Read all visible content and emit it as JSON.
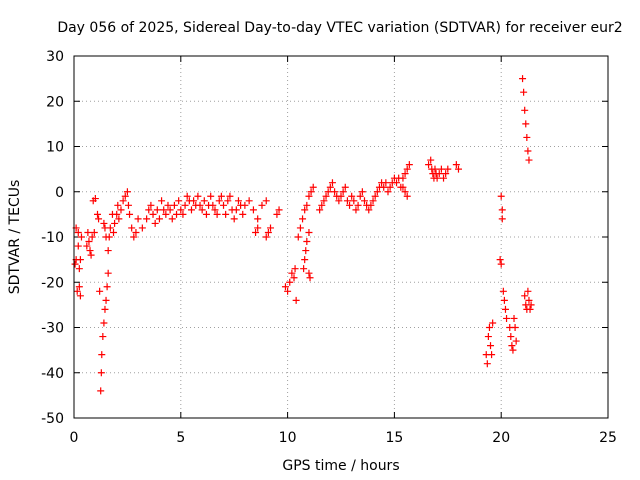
{
  "chart_data": {
    "type": "scatter",
    "title": "Day 056 of 2025, Sidereal Day-to-day VTEC variation (SDTVAR) for receiver eur2",
    "xlabel": "GPS time / hours",
    "ylabel": "SDTVAR / TECUs",
    "xlim": [
      0,
      25
    ],
    "ylim": [
      -50,
      30
    ],
    "xticks": [
      0,
      5,
      10,
      15,
      20,
      25
    ],
    "yticks": [
      -50,
      -40,
      -30,
      -20,
      -10,
      0,
      10,
      20,
      30
    ],
    "grid": true,
    "marker": "+",
    "color": "#ff0000",
    "series": [
      {
        "name": "SDTVAR",
        "points": [
          [
            0.05,
            -16
          ],
          [
            0.1,
            -8
          ],
          [
            0.1,
            -15
          ],
          [
            0.15,
            -22
          ],
          [
            0.2,
            -12
          ],
          [
            0.2,
            -9
          ],
          [
            0.25,
            -21
          ],
          [
            0.25,
            -17
          ],
          [
            0.3,
            -15
          ],
          [
            0.3,
            -23
          ],
          [
            0.35,
            -10
          ],
          [
            0.6,
            -12
          ],
          [
            0.65,
            -9
          ],
          [
            0.7,
            -11
          ],
          [
            0.75,
            -13
          ],
          [
            0.8,
            -14
          ],
          [
            0.85,
            -10
          ],
          [
            0.9,
            -2
          ],
          [
            0.95,
            -9
          ],
          [
            1.0,
            -1.5
          ],
          [
            1.1,
            -5
          ],
          [
            1.15,
            -6
          ],
          [
            1.2,
            -22
          ],
          [
            1.25,
            -44
          ],
          [
            1.28,
            -40
          ],
          [
            1.3,
            -36
          ],
          [
            1.35,
            -32
          ],
          [
            1.4,
            -29
          ],
          [
            1.45,
            -26
          ],
          [
            1.5,
            -24
          ],
          [
            1.55,
            -21
          ],
          [
            1.6,
            -18
          ],
          [
            1.4,
            -7
          ],
          [
            1.45,
            -8
          ],
          [
            1.5,
            -10
          ],
          [
            1.6,
            -13
          ],
          [
            1.65,
            -10
          ],
          [
            1.7,
            -8
          ],
          [
            1.8,
            -5
          ],
          [
            1.85,
            -9
          ],
          [
            1.9,
            -7
          ],
          [
            2.0,
            -5
          ],
          [
            2.05,
            -3
          ],
          [
            2.1,
            -6
          ],
          [
            2.2,
            -4
          ],
          [
            2.3,
            -2
          ],
          [
            2.4,
            -1
          ],
          [
            2.5,
            0
          ],
          [
            2.55,
            -3
          ],
          [
            2.6,
            -5
          ],
          [
            2.7,
            -8
          ],
          [
            2.8,
            -10
          ],
          [
            2.9,
            -9
          ],
          [
            3.0,
            -6
          ],
          [
            3.2,
            -8
          ],
          [
            3.4,
            -6
          ],
          [
            3.5,
            -4
          ],
          [
            3.6,
            -3
          ],
          [
            3.7,
            -5
          ],
          [
            3.8,
            -7
          ],
          [
            3.9,
            -4
          ],
          [
            4.0,
            -6
          ],
          [
            4.1,
            -2
          ],
          [
            4.2,
            -4
          ],
          [
            4.3,
            -5
          ],
          [
            4.4,
            -3
          ],
          [
            4.5,
            -4
          ],
          [
            4.6,
            -6
          ],
          [
            4.7,
            -3
          ],
          [
            4.8,
            -5
          ],
          [
            4.9,
            -2
          ],
          [
            5.0,
            -4
          ],
          [
            5.1,
            -5
          ],
          [
            5.2,
            -3
          ],
          [
            5.3,
            -1
          ],
          [
            5.4,
            -2
          ],
          [
            5.5,
            -4
          ],
          [
            5.6,
            -2
          ],
          [
            5.7,
            -3
          ],
          [
            5.8,
            -1
          ],
          [
            5.9,
            -3
          ],
          [
            6.0,
            -4
          ],
          [
            6.1,
            -2
          ],
          [
            6.2,
            -5
          ],
          [
            6.3,
            -3
          ],
          [
            6.4,
            -1
          ],
          [
            6.5,
            -3
          ],
          [
            6.6,
            -4
          ],
          [
            6.7,
            -5
          ],
          [
            6.8,
            -2
          ],
          [
            6.9,
            -1
          ],
          [
            7.0,
            -3
          ],
          [
            7.1,
            -5
          ],
          [
            7.2,
            -2
          ],
          [
            7.3,
            -1
          ],
          [
            7.4,
            -4
          ],
          [
            7.5,
            -6
          ],
          [
            7.6,
            -4
          ],
          [
            7.7,
            -2
          ],
          [
            7.8,
            -3
          ],
          [
            7.9,
            -5
          ],
          [
            8.0,
            -3
          ],
          [
            8.2,
            -2
          ],
          [
            8.4,
            -4
          ],
          [
            8.6,
            -6
          ],
          [
            8.8,
            -3
          ],
          [
            9.0,
            -2
          ],
          [
            8.5,
            -9
          ],
          [
            8.6,
            -8
          ],
          [
            9.0,
            -10
          ],
          [
            9.1,
            -9
          ],
          [
            9.2,
            -8
          ],
          [
            9.5,
            -5
          ],
          [
            9.6,
            -4
          ],
          [
            9.9,
            -21
          ],
          [
            10.0,
            -22
          ],
          [
            10.1,
            -20
          ],
          [
            10.2,
            -18
          ],
          [
            10.3,
            -19
          ],
          [
            10.35,
            -17
          ],
          [
            10.4,
            -24
          ],
          [
            10.5,
            -10
          ],
          [
            10.6,
            -8
          ],
          [
            10.7,
            -6
          ],
          [
            10.8,
            -4
          ],
          [
            10.9,
            -3
          ],
          [
            11.0,
            -1
          ],
          [
            11.1,
            0
          ],
          [
            11.2,
            1
          ],
          [
            10.75,
            -17
          ],
          [
            10.8,
            -15
          ],
          [
            10.85,
            -13
          ],
          [
            10.9,
            -11
          ],
          [
            11.0,
            -9
          ],
          [
            11.0,
            -18
          ],
          [
            11.05,
            -19
          ],
          [
            11.5,
            -4
          ],
          [
            11.6,
            -3
          ],
          [
            11.7,
            -2
          ],
          [
            11.8,
            -1
          ],
          [
            11.9,
            0
          ],
          [
            12.0,
            1
          ],
          [
            12.1,
            2
          ],
          [
            12.2,
            0
          ],
          [
            12.3,
            -1
          ],
          [
            12.4,
            -2
          ],
          [
            12.5,
            -1
          ],
          [
            12.6,
            0
          ],
          [
            12.7,
            1
          ],
          [
            12.8,
            -2
          ],
          [
            12.9,
            -3
          ],
          [
            13.0,
            -1
          ],
          [
            13.1,
            -2
          ],
          [
            13.2,
            -4
          ],
          [
            13.3,
            -3
          ],
          [
            13.4,
            -1
          ],
          [
            13.5,
            0
          ],
          [
            13.6,
            -2
          ],
          [
            13.7,
            -3
          ],
          [
            13.8,
            -4
          ],
          [
            13.9,
            -3
          ],
          [
            14.0,
            -2
          ],
          [
            14.1,
            -1
          ],
          [
            14.2,
            0
          ],
          [
            14.3,
            1
          ],
          [
            14.4,
            2
          ],
          [
            14.5,
            1
          ],
          [
            14.6,
            2
          ],
          [
            14.7,
            0
          ],
          [
            14.8,
            1
          ],
          [
            14.9,
            2
          ],
          [
            15.0,
            3
          ],
          [
            15.1,
            2
          ],
          [
            15.2,
            3
          ],
          [
            15.3,
            1
          ],
          [
            15.4,
            3
          ],
          [
            15.5,
            4
          ],
          [
            15.6,
            5
          ],
          [
            15.7,
            6
          ],
          [
            15.5,
            0
          ],
          [
            15.6,
            -1
          ],
          [
            15.4,
            1
          ],
          [
            16.6,
            6
          ],
          [
            16.7,
            7
          ],
          [
            16.75,
            5
          ],
          [
            16.8,
            4
          ],
          [
            16.85,
            3
          ],
          [
            16.9,
            5
          ],
          [
            16.95,
            4
          ],
          [
            17.0,
            3
          ],
          [
            17.1,
            4
          ],
          [
            17.2,
            5
          ],
          [
            17.3,
            3
          ],
          [
            17.4,
            4
          ],
          [
            17.5,
            5
          ],
          [
            17.9,
            6
          ],
          [
            18.0,
            5
          ],
          [
            19.3,
            -36
          ],
          [
            19.35,
            -38
          ],
          [
            19.4,
            -32
          ],
          [
            19.45,
            -30
          ],
          [
            19.5,
            -34
          ],
          [
            19.55,
            -36
          ],
          [
            19.6,
            -29
          ],
          [
            19.95,
            -15
          ],
          [
            20.0,
            -16
          ],
          [
            20.0,
            -1
          ],
          [
            20.05,
            -4
          ],
          [
            20.05,
            -6
          ],
          [
            20.1,
            -22
          ],
          [
            20.15,
            -24
          ],
          [
            20.2,
            -26
          ],
          [
            20.25,
            -28
          ],
          [
            20.4,
            -30
          ],
          [
            20.45,
            -32
          ],
          [
            20.5,
            -34
          ],
          [
            20.55,
            -35
          ],
          [
            20.6,
            -28
          ],
          [
            20.65,
            -30
          ],
          [
            20.7,
            -33
          ],
          [
            21.0,
            25
          ],
          [
            21.05,
            22
          ],
          [
            21.1,
            18
          ],
          [
            21.15,
            15
          ],
          [
            21.2,
            12
          ],
          [
            21.25,
            9
          ],
          [
            21.3,
            7
          ],
          [
            21.1,
            -23
          ],
          [
            21.15,
            -25
          ],
          [
            21.2,
            -26
          ],
          [
            21.25,
            -22
          ],
          [
            21.3,
            -24
          ],
          [
            21.35,
            -26
          ],
          [
            21.4,
            -25
          ]
        ]
      }
    ]
  }
}
